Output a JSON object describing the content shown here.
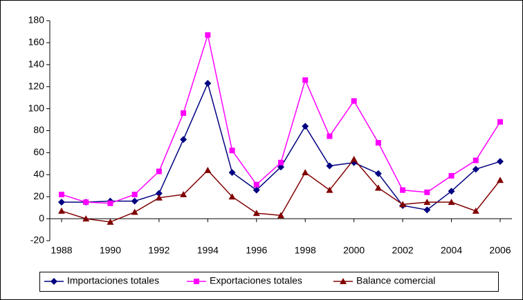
{
  "chart_data": {
    "type": "line",
    "x": [
      1988,
      1989,
      1990,
      1991,
      1992,
      1993,
      1994,
      1995,
      1996,
      1997,
      1998,
      1999,
      2000,
      2001,
      2002,
      2003,
      2004,
      2005,
      2006
    ],
    "xlim": [
      1988,
      2006
    ],
    "xticks": [
      1988,
      1990,
      1992,
      1994,
      1996,
      1998,
      2000,
      2002,
      2004,
      2006
    ],
    "ylim": [
      -20,
      180
    ],
    "yticks": [
      -20,
      0,
      20,
      40,
      60,
      80,
      100,
      120,
      140,
      160,
      180
    ],
    "legend": "bottom",
    "series": [
      {
        "name": "Importaciones totales",
        "color": "#000080",
        "marker": "diamond",
        "values": [
          15,
          15,
          16,
          16,
          23,
          72,
          123,
          42,
          26,
          47,
          84,
          48,
          51,
          41,
          12,
          8,
          25,
          45,
          52
        ]
      },
      {
        "name": "Exportaciones totales",
        "color": "#ff00ff",
        "marker": "square",
        "values": [
          22,
          15,
          14,
          22,
          43,
          96,
          167,
          62,
          31,
          51,
          126,
          75,
          107,
          69,
          26,
          24,
          39,
          53,
          88
        ]
      },
      {
        "name": "Balance comercial",
        "color": "#800000",
        "marker": "triangle",
        "values": [
          7,
          0,
          -3,
          6,
          19,
          22,
          44,
          20,
          5,
          3,
          42,
          26,
          54,
          28,
          13,
          15,
          15,
          7,
          35
        ]
      }
    ]
  }
}
